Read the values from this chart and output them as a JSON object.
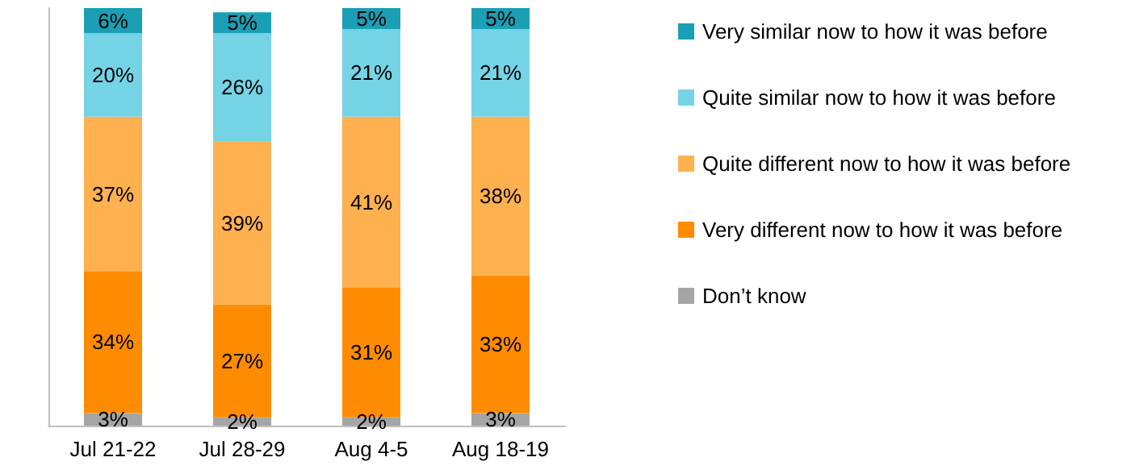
{
  "chart_data": {
    "type": "bar",
    "stacked": true,
    "categories": [
      "Jul 21-22",
      "Jul 28-29",
      "Aug 4-5",
      "Aug 18-19"
    ],
    "legend": "right",
    "grid": false,
    "series": [
      {
        "name": "Don’t know",
        "color": "#a5a5a5",
        "values": [
          3,
          2,
          2,
          3
        ],
        "value_labels": [
          "3%",
          "2%",
          "2%",
          "3%"
        ]
      },
      {
        "name": "Very different now to how it was before",
        "color": "#ff8c00",
        "values": [
          34,
          27,
          31,
          33
        ],
        "value_labels": [
          "34%",
          "27%",
          "31%",
          "33%"
        ]
      },
      {
        "name": "Quite different now to how it was before",
        "color": "#ffb04f",
        "values": [
          37,
          39,
          41,
          38
        ],
        "value_labels": [
          "37%",
          "39%",
          "41%",
          "38%"
        ]
      },
      {
        "name": "Quite similar now to how it was before",
        "color": "#75d3e6",
        "values": [
          20,
          26,
          21,
          21
        ],
        "value_labels": [
          "20%",
          "26%",
          "21%",
          "21%"
        ]
      },
      {
        "name": "Very similar now to how it was before",
        "color": "#1a9fb5",
        "values": [
          6,
          5,
          5,
          5
        ],
        "value_labels": [
          "6%",
          "5%",
          "5%",
          "5%"
        ]
      }
    ]
  }
}
